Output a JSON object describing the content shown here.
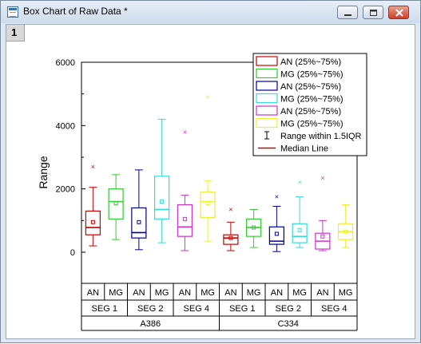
{
  "window": {
    "title": "Box Chart of Raw Data *",
    "page_tab": "1"
  },
  "chart_data": {
    "type": "box",
    "title": "",
    "xlabel": "",
    "ylabel": "Range",
    "ylim": [
      -1000,
      6000
    ],
    "yticks": [
      0,
      2000,
      4000,
      6000
    ],
    "grid": false,
    "legend_position": "top-right",
    "legend": [
      {
        "label": "AN (25%~75%)",
        "color": "#cc0000"
      },
      {
        "label": "MG (25%~75%)",
        "color": "#33cc33"
      },
      {
        "label": "AN (25%~75%)",
        "color": "#000099"
      },
      {
        "label": "MG (25%~75%)",
        "color": "#33dddd"
      },
      {
        "label": "AN (25%~75%)",
        "color": "#cc33cc"
      },
      {
        "label": "MG (25%~75%)",
        "color": "#eeee33"
      },
      {
        "label": "Range within 1.5IQR",
        "color": "#000000"
      },
      {
        "label": "Median Line",
        "color": "#cc0000"
      }
    ],
    "categories": [
      {
        "label": "AN",
        "seg": "SEG 1",
        "group": "A386"
      },
      {
        "label": "MG",
        "seg": "SEG 1",
        "group": "A386"
      },
      {
        "label": "AN",
        "seg": "SEG 2",
        "group": "A386"
      },
      {
        "label": "MG",
        "seg": "SEG 2",
        "group": "A386"
      },
      {
        "label": "AN",
        "seg": "SEG 4",
        "group": "A386"
      },
      {
        "label": "MG",
        "seg": "SEG 4",
        "group": "A386"
      },
      {
        "label": "AN",
        "seg": "SEG 1",
        "group": "C334"
      },
      {
        "label": "MG",
        "seg": "SEG 1",
        "group": "C334"
      },
      {
        "label": "AN",
        "seg": "SEG 2",
        "group": "C334"
      },
      {
        "label": "MG",
        "seg": "SEG 2",
        "group": "C334"
      },
      {
        "label": "AN",
        "seg": "SEG 4",
        "group": "C334"
      },
      {
        "label": "MG",
        "seg": "SEG 4",
        "group": "C334"
      }
    ],
    "segments": [
      {
        "label": "SEG 1",
        "first": 0,
        "last": 1
      },
      {
        "label": "SEG 2",
        "first": 2,
        "last": 3
      },
      {
        "label": "SEG 4",
        "first": 4,
        "last": 5
      },
      {
        "label": "SEG 1",
        "first": 6,
        "last": 7
      },
      {
        "label": "SEG 2",
        "first": 8,
        "last": 9
      },
      {
        "label": "SEG 4",
        "first": 10,
        "last": 11
      }
    ],
    "groups": [
      {
        "label": "A386",
        "first": 0,
        "last": 5
      },
      {
        "label": "C334",
        "first": 6,
        "last": 11
      }
    ],
    "boxes": [
      {
        "color": "#cc0000",
        "whisker_low": 200,
        "q1": 550,
        "median": 780,
        "q3": 1300,
        "whisker_high": 2050,
        "mean": 950,
        "min": 200,
        "max": 2700
      },
      {
        "color": "#33cc33",
        "whisker_low": 400,
        "q1": 1050,
        "median": 1600,
        "q3": 2000,
        "whisker_high": 2450,
        "mean": 1550,
        "min": 400,
        "max": 2450
      },
      {
        "color": "#000099",
        "whisker_low": 80,
        "q1": 450,
        "median": 620,
        "q3": 1400,
        "whisker_high": 2600,
        "mean": 950,
        "min": 80,
        "max": 2600
      },
      {
        "color": "#33dddd",
        "whisker_low": 300,
        "q1": 1050,
        "median": 1350,
        "q3": 2400,
        "whisker_high": 4200,
        "mean": 1600,
        "min": 300,
        "max": 4200
      },
      {
        "color": "#cc33cc",
        "whisker_low": 50,
        "q1": 500,
        "median": 800,
        "q3": 1500,
        "whisker_high": 1800,
        "mean": 1050,
        "min": 50,
        "max": 3800
      },
      {
        "color": "#eeee33",
        "whisker_low": 350,
        "q1": 1100,
        "median": 1600,
        "q3": 1900,
        "whisker_high": 2250,
        "mean": 1550,
        "min": 350,
        "max": 4900
      },
      {
        "color": "#cc0000",
        "whisker_low": 50,
        "q1": 250,
        "median": 450,
        "q3": 550,
        "whisker_high": 950,
        "mean": 450,
        "min": 50,
        "max": 1350
      },
      {
        "color": "#33cc33",
        "whisker_low": 150,
        "q1": 500,
        "median": 780,
        "q3": 1050,
        "whisker_high": 1350,
        "mean": 780,
        "min": 150,
        "max": 1350
      },
      {
        "color": "#000099",
        "whisker_low": 20,
        "q1": 250,
        "median": 350,
        "q3": 800,
        "whisker_high": 1450,
        "mean": 580,
        "min": 20,
        "max": 1750
      },
      {
        "color": "#33dddd",
        "whisker_low": 150,
        "q1": 300,
        "median": 500,
        "q3": 900,
        "whisker_high": 1750,
        "mean": 700,
        "min": 150,
        "max": 2200
      },
      {
        "color": "#cc33cc",
        "whisker_low": 50,
        "q1": 100,
        "median": 350,
        "q3": 600,
        "whisker_high": 1000,
        "mean": 500,
        "min": 50,
        "max": 2350
      },
      {
        "color": "#eeee33",
        "whisker_low": 150,
        "q1": 400,
        "median": 650,
        "q3": 900,
        "whisker_high": 1500,
        "mean": 650,
        "min": 150,
        "max": 1500
      }
    ]
  }
}
